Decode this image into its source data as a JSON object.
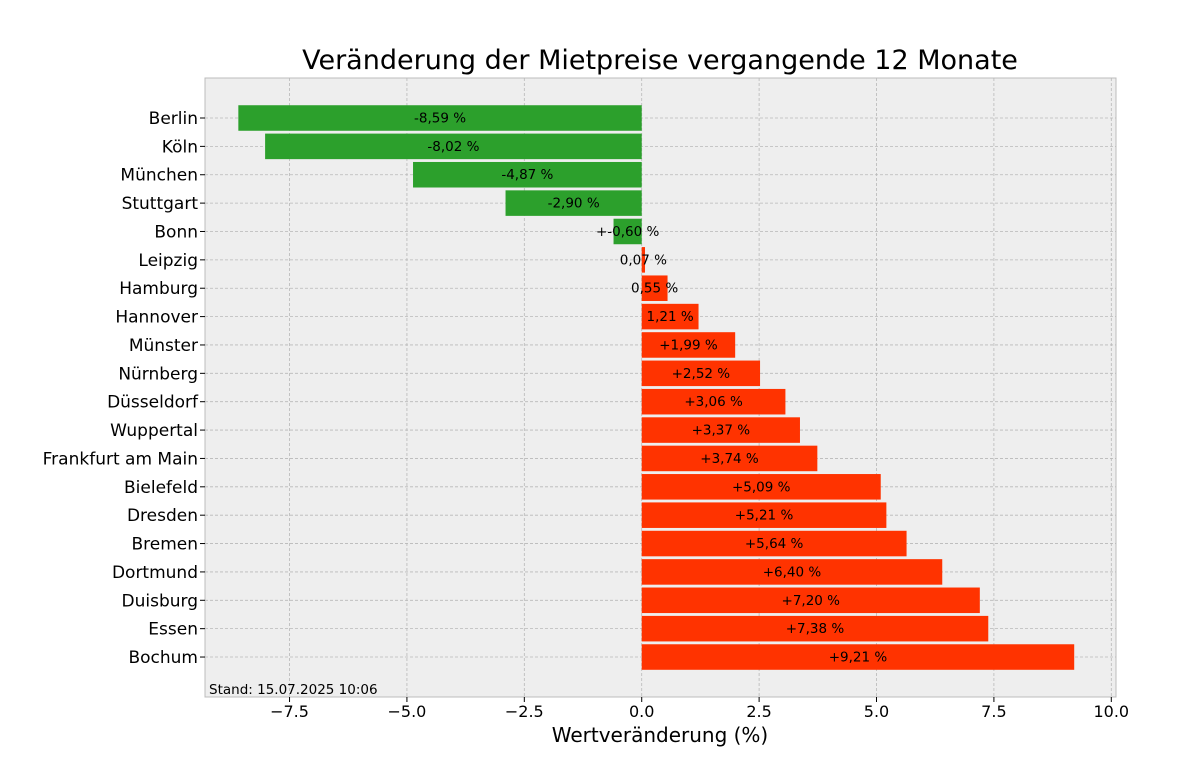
{
  "chart_data": {
    "type": "bar",
    "orientation": "horizontal",
    "title": "Veränderung der Mietpreise vergangende 12 Monate",
    "xlabel": "Wertveränderung (%)",
    "ylabel": "",
    "xlim": [
      -9.3,
      10.1
    ],
    "xticks": [
      -7.5,
      -5.0,
      -2.5,
      0.0,
      2.5,
      5.0,
      7.5,
      10.0
    ],
    "xtick_labels": [
      "−7.5",
      "−5.0",
      "−2.5",
      "0.0",
      "2.5",
      "5.0",
      "7.5",
      "10.0"
    ],
    "grid": true,
    "note": "Stand: 15.07.2025 10:06",
    "colors": {
      "negative": "#2ca02c",
      "positive": "#ff3300",
      "background": "#eeeeee"
    },
    "categories": [
      "Berlin",
      "Köln",
      "München",
      "Stuttgart",
      "Bonn",
      "Leipzig",
      "Hamburg",
      "Hannover",
      "Münster",
      "Nürnberg",
      "Düsseldorf",
      "Wuppertal",
      "Frankfurt am Main",
      "Bielefeld",
      "Dresden",
      "Bremen",
      "Dortmund",
      "Duisburg",
      "Essen",
      "Bochum"
    ],
    "values": [
      -8.59,
      -8.02,
      -4.87,
      -2.9,
      -0.6,
      0.07,
      0.55,
      1.21,
      1.99,
      2.52,
      3.06,
      3.37,
      3.74,
      5.09,
      5.21,
      5.64,
      6.4,
      7.2,
      7.38,
      9.21
    ],
    "labels": [
      "-8,59 %",
      "-8,02 %",
      "-4,87 %",
      "-2,90 %",
      "+-0,60 %",
      "0,07 %",
      "0,55 %",
      "1,21 %",
      "+1,99 %",
      "+2,52 %",
      "+3,06 %",
      "+3,37 %",
      "+3,74 %",
      "+5,09 %",
      "+5,21 %",
      "+5,64 %",
      "+6,40 %",
      "+7,20 %",
      "+7,38 %",
      "+9,21 %"
    ]
  }
}
